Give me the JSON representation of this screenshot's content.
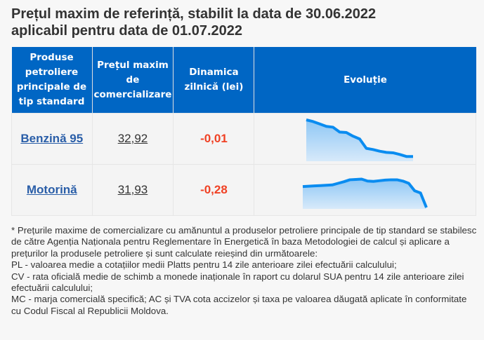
{
  "title": {
    "line1": "Prețul maxim de referință, stabilit la data de 30.06.2022",
    "line2": "aplicabil pentru data de 01.07.2022"
  },
  "table": {
    "headers": [
      "Produse petroliere principale de tip standard",
      "Prețul maxim de comercializare",
      "Dinamica zilnică (lei)",
      "Evoluție"
    ],
    "rows": [
      {
        "product": "Benzină 95",
        "price": "32,92",
        "dynamic": "-0,01",
        "evolution": [
          1.0,
          0.96,
          0.9,
          0.84,
          0.82,
          0.7,
          0.69,
          0.6,
          0.53,
          0.3,
          0.27,
          0.23,
          0.2,
          0.19,
          0.15,
          0.1,
          0.1
        ]
      },
      {
        "product": "Motorină",
        "price": "31,93",
        "dynamic": "-0,28",
        "evolution": [
          0.65,
          0.66,
          0.67,
          0.68,
          0.69,
          0.7,
          0.75,
          0.8,
          0.86,
          0.87,
          0.88,
          0.82,
          0.81,
          0.83,
          0.85,
          0.86,
          0.86,
          0.82,
          0.75,
          0.52,
          0.45,
          0.0
        ]
      }
    ]
  },
  "colors": {
    "header_bg": "#0066c4",
    "link": "#2a5ea8",
    "negative": "#f04124",
    "spark_line": "#0a8cf0"
  },
  "note": [
    "* Prețurile maxime de comercializare cu amănuntul a produselor petroliere principale de tip standard se stabilesc de către Agenția Naționala pentru Reglementare în Energetică în baza Metodologiei de calcul și aplicare a prețurilor la produsele petroliere și sunt calculate reieșind din următoarele:",
    "PL - valoarea medie a cotațiilor medii Platts pentru 14 zile anterioare zilei efectuării calculului;",
    "CV - rata oficială medie de schimb a monede inaționale în raport cu dolarul SUA pentru 14 zile anterioare zilei efectuării calculului;",
    "MC - marja comercială specifică; AC și TVA cota accizelor și taxa pe valoarea dăugată aplicate în conformitate cu Codul Fiscal al Republicii Moldova."
  ]
}
